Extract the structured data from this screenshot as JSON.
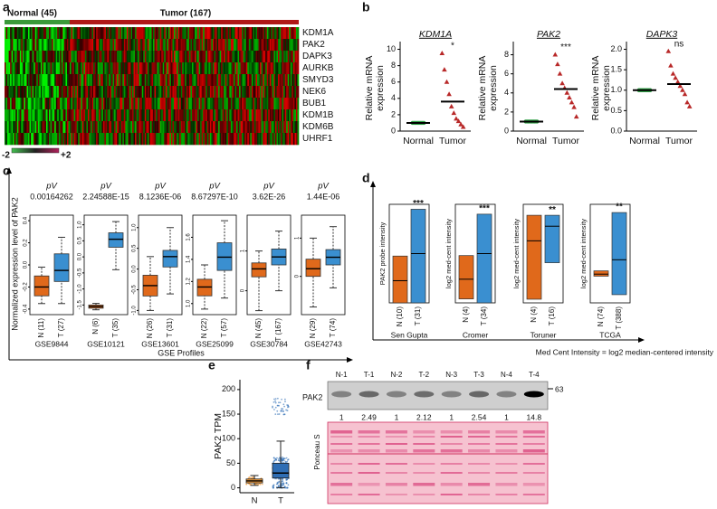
{
  "panel_a": {
    "label": "a",
    "groups": [
      "Normal (45)",
      "Tumor (167)"
    ],
    "genes": [
      "KDM1A",
      "PAK2",
      "DAPK3",
      "AURKB",
      "SMYD3",
      "NEK6",
      "BUB1",
      "KDM1B",
      "KDM6B",
      "UHRF1"
    ],
    "scale_labels": [
      "-2",
      "+2"
    ]
  },
  "panel_b": {
    "label": "b",
    "y_label": [
      "Relative mRNA",
      "expression"
    ],
    "categories": [
      "Normal",
      "Tumor"
    ],
    "plots": [
      {
        "title": "KDM1A",
        "significance": "*",
        "ylim": [
          0,
          10.5
        ],
        "yticks": [
          0,
          2,
          4,
          6,
          8,
          10
        ],
        "series": [
          [
            1,
            1,
            1,
            1,
            1,
            1,
            1,
            1,
            1,
            1
          ],
          [
            9.5,
            7.5,
            6,
            4.5,
            3,
            2.2,
            1.5,
            1.2,
            0.8,
            0.5
          ]
        ],
        "means": [
          1,
          3.6
        ]
      },
      {
        "title": "PAK2",
        "significance": "***",
        "ylim": [
          0,
          9
        ],
        "yticks": [
          0,
          2,
          4,
          6,
          8
        ],
        "series": [
          [
            1,
            1,
            1,
            1,
            1,
            1,
            1,
            1,
            1,
            1
          ],
          [
            8,
            7,
            6,
            5,
            4.5,
            4,
            3.5,
            3,
            2.5,
            1.5
          ]
        ],
        "means": [
          1,
          4.4
        ]
      },
      {
        "title": "DAPK3",
        "significance": "ns",
        "ylim": [
          0,
          2.1
        ],
        "yticks": [
          {
            "value": 0,
            "label": "0.0"
          },
          0.5,
          {
            "value": 1,
            "label": "1.0"
          },
          1.5,
          {
            "value": 2,
            "label": "2.0"
          }
        ],
        "series": [
          [
            1,
            1,
            1,
            1,
            1,
            1,
            1,
            1,
            1,
            1
          ],
          [
            1.95,
            1.6,
            1.4,
            1.3,
            1.2,
            1.1,
            1,
            0.9,
            0.7,
            0.6
          ]
        ],
        "means": [
          1,
          1.15
        ]
      }
    ]
  },
  "panel_c": {
    "label": "c",
    "y_label": "Normalized expression level of PAK2",
    "x_label": "GSE Profiles",
    "pv_label": "pV",
    "plots": [
      {
        "dataset": "GSE9844",
        "pv": "0.00164262",
        "categories": [
          "N (11)",
          "T (27)"
        ],
        "ylim": [
          -0.45,
          0.45
        ],
        "yticks": [
          -0.4,
          -0.2,
          {
            "value": 0,
            "label": "0.0"
          },
          0.2,
          0.4
        ],
        "boxes": [
          [
            -0.35,
            -0.28,
            -0.2,
            -0.1,
            -0.02
          ],
          [
            -0.35,
            -0.15,
            -0.05,
            0.1,
            0.25
          ]
        ]
      },
      {
        "dataset": "GSE10121",
        "pv": "2.24588E-15",
        "categories": [
          "N (6)",
          "T (35)"
        ],
        "ylim": [
          -1.8,
          1.3
        ],
        "yticks": [
          -1.5,
          {
            "value": -1,
            "label": "-1.0"
          },
          -0.5,
          {
            "value": 0,
            "label": "0.0"
          },
          0.5,
          {
            "value": 1,
            "label": "1.0"
          }
        ],
        "boxes": [
          [
            -1.65,
            -1.6,
            -1.55,
            -1.5,
            -1.45
          ],
          [
            -0.4,
            0.3,
            0.55,
            0.75,
            1.1
          ]
        ]
      },
      {
        "dataset": "GSE13601",
        "pv": "8.1236E-06",
        "categories": [
          "N (26)",
          "T (31)"
        ],
        "ylim": [
          -1.1,
          1.3
        ],
        "yticks": [
          {
            "value": -1,
            "label": "-1.0"
          },
          -0.5,
          {
            "value": 0,
            "label": "0.0"
          },
          0.5,
          {
            "value": 1,
            "label": "1.0"
          }
        ],
        "boxes": [
          [
            -1,
            -0.65,
            -0.4,
            -0.15,
            0.3
          ],
          [
            -0.6,
            0.05,
            0.3,
            0.45,
            1
          ]
        ]
      },
      {
        "dataset": "GSE25099",
        "pv": "8.67297E-10",
        "categories": [
          "N (22)",
          "T (57)"
        ],
        "ylim": [
          0.9,
          1.8
        ],
        "yticks": [
          {
            "value": 1,
            "label": "1.0"
          },
          1.2,
          1.4,
          1.6
        ],
        "boxes": [
          [
            0.95,
            1.07,
            1.15,
            1.22,
            1.35
          ],
          [
            1.05,
            1.3,
            1.42,
            1.55,
            1.75
          ]
        ]
      },
      {
        "dataset": "GSE30784",
        "pv": "3.62E-26",
        "categories": [
          "N (45)",
          "T (167)"
        ],
        "ylim": [
          -0.6,
          1.9
        ],
        "yticks": [
          0,
          1
        ],
        "boxes": [
          [
            -0.5,
            0.35,
            0.55,
            0.7,
            1
          ],
          [
            0,
            0.65,
            0.85,
            1.05,
            1.5
          ]
        ]
      },
      {
        "dataset": "GSE42743",
        "pv": "1.44E-06",
        "categories": [
          "N (29)",
          "T (74)"
        ],
        "ylim": [
          -1,
          1.6
        ],
        "yticks": [
          0,
          1
        ],
        "boxes": [
          [
            -0.8,
            0,
            0.2,
            0.45,
            1
          ],
          [
            -0.3,
            0.3,
            0.5,
            0.7,
            1.3
          ]
        ]
      }
    ]
  },
  "panel_d": {
    "label": "d",
    "note": "Med Cent Intensity = log2 median-centered intensity",
    "plots": [
      {
        "study": "Sen Gupta",
        "y_label": "PAK2 probe intensity",
        "significance": "***",
        "categories": [
          "N (10)",
          "T (31)"
        ],
        "ylim": [
          0,
          2
        ],
        "bars": [
          [
            0,
            0.45,
            0.95
          ],
          [
            0,
            1,
            1.9
          ]
        ]
      },
      {
        "study": "Cromer",
        "y_label": "log2 med-cent intensity",
        "significance": "***",
        "categories": [
          "N (4)",
          "T (34)"
        ],
        "ylim": [
          0,
          2.5
        ],
        "bars": [
          [
            0.1,
            0.6,
            1.2
          ],
          [
            0,
            1.25,
            2.25
          ]
        ]
      },
      {
        "study": "Toruner",
        "y_label": "log2 med-cent intensity",
        "significance": "**",
        "categories": [
          "N (4)",
          "T (16)"
        ],
        "ylim": [
          -1.4,
          1.3
        ],
        "bars": [
          [
            -1.3,
            0.3,
            1
          ],
          [
            -0.3,
            0.7,
            1
          ]
        ]
      },
      {
        "study": "TCGA",
        "y_label": "log2 med-cent intensity",
        "significance": "**",
        "categories": [
          "N (74)",
          "T (388)"
        ],
        "ylim": [
          -0.7,
          1.7
        ],
        "bars": [
          [
            -0.05,
            0,
            0.08
          ],
          [
            -0.5,
            0.35,
            1.5
          ]
        ]
      }
    ]
  },
  "panel_e": {
    "label": "e",
    "y_label": "PAK2 TPM",
    "categories": [
      "N",
      "T"
    ],
    "ylim": [
      -10,
      220
    ],
    "yticks": [
      0,
      50,
      100,
      150,
      200
    ],
    "boxes": [
      [
        5,
        10,
        14,
        18,
        25
      ],
      [
        0,
        20,
        30,
        50,
        95
      ]
    ]
  },
  "panel_f": {
    "label": "f",
    "lanes": [
      "N-1",
      "T-1",
      "N-2",
      "T-2",
      "N-3",
      "T-3",
      "N-4",
      "T-4"
    ],
    "protein": "PAK2",
    "marker": "63",
    "quantification": [
      1,
      2.49,
      1,
      2.12,
      1,
      2.54,
      1,
      14.8
    ],
    "stain": "Ponceau S"
  }
}
